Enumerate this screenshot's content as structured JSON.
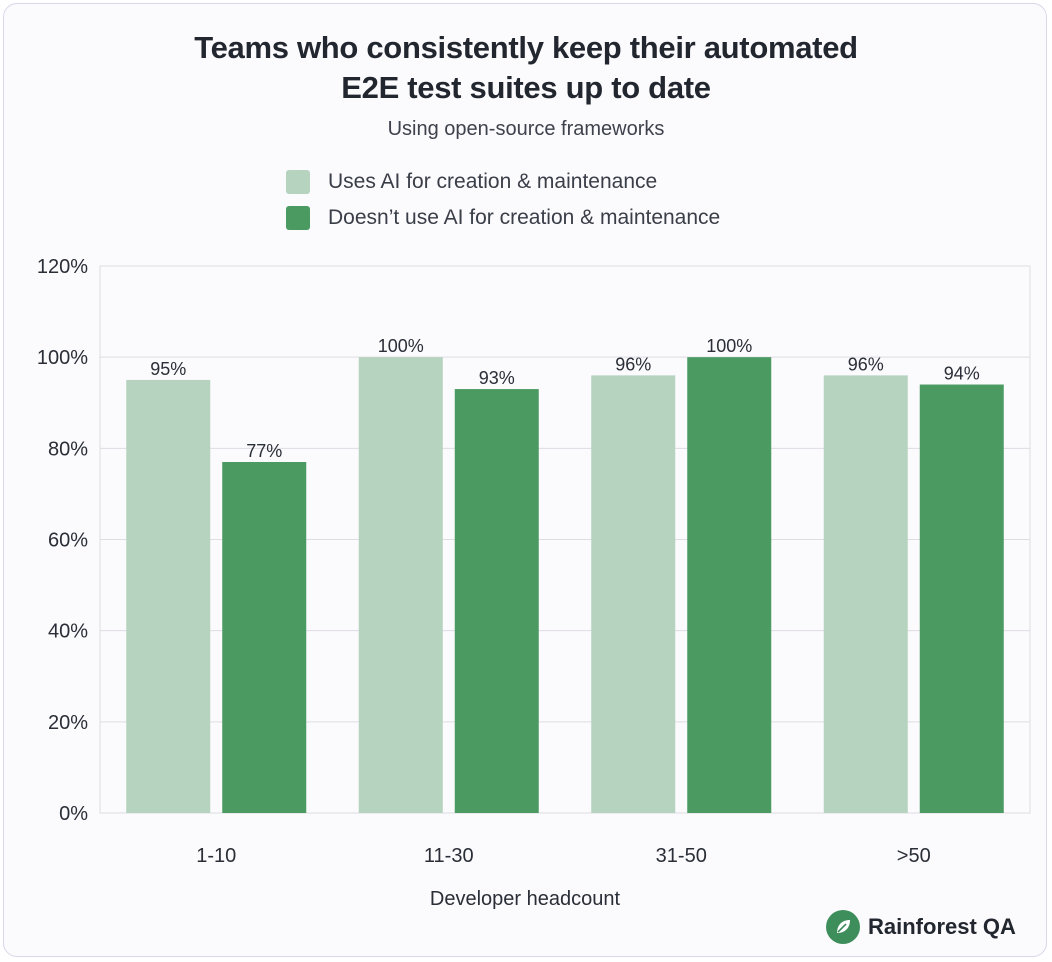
{
  "chart_data": {
    "type": "bar",
    "title_lines": [
      "Teams who consistently keep their automated",
      "E2E test suites up to date"
    ],
    "subtitle": "Using open-source frameworks",
    "categories": [
      "1-10",
      "11-30",
      "31-50",
      ">50"
    ],
    "series": [
      {
        "name": "Uses AI for creation & maintenance",
        "color": "#b5d3be",
        "values": [
          95,
          100,
          96,
          96
        ],
        "labels": [
          "95%",
          "100%",
          "96%",
          "96%"
        ]
      },
      {
        "name": "Doesn’t use AI for creation & maintenance",
        "color": "#4b9a62",
        "values": [
          77,
          93,
          100,
          94
        ],
        "labels": [
          "77%",
          "93%",
          "100%",
          "94%"
        ]
      }
    ],
    "yticks": [
      0,
      20,
      40,
      60,
      80,
      100,
      120
    ],
    "ytick_labels": [
      "0%",
      "20%",
      "40%",
      "60%",
      "80%",
      "100%",
      "120%"
    ],
    "ylim": [
      0,
      120
    ],
    "xlabel": "Developer headcount",
    "ylabel": "",
    "grid": true,
    "legend_position": "top"
  },
  "brand": {
    "name": "Rainforest QA",
    "color": "#3e8e5b"
  }
}
